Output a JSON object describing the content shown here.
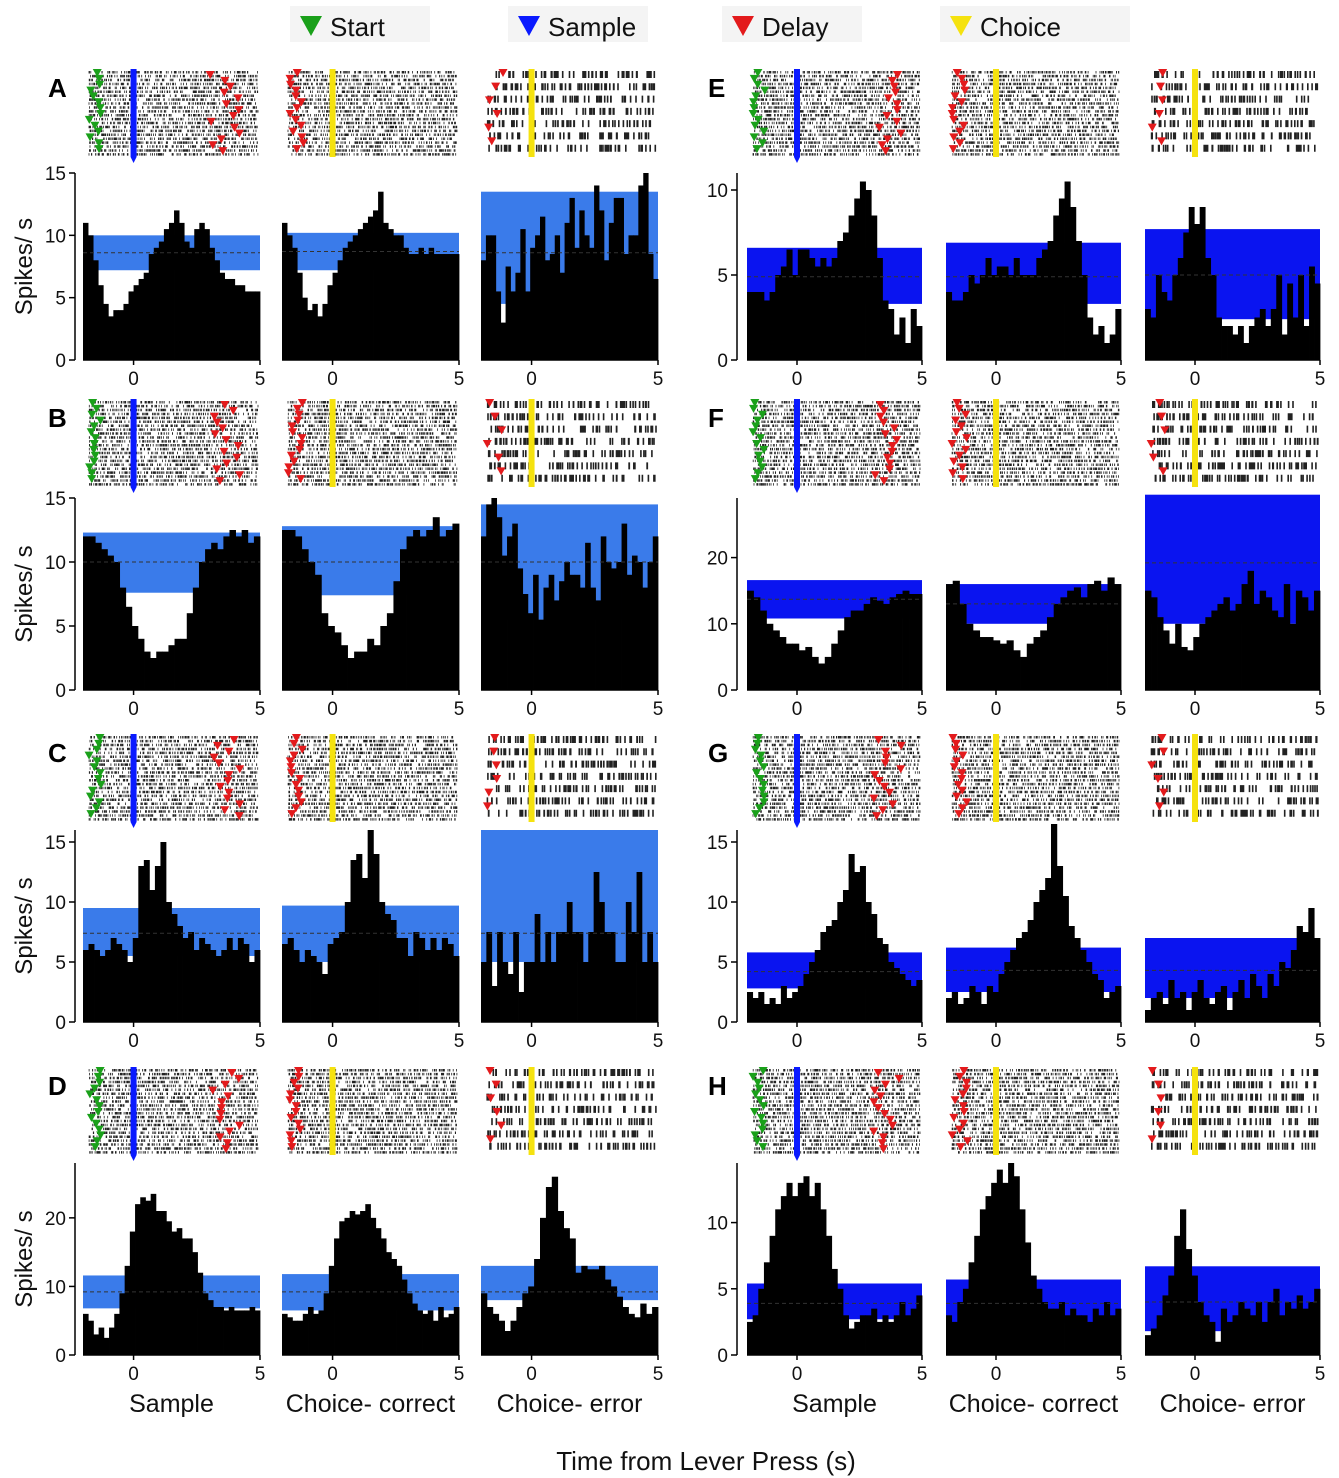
{
  "legend": {
    "items": [
      {
        "label": "Start",
        "color": "#1aa01a"
      },
      {
        "label": "Sample",
        "color": "#0a1aff"
      },
      {
        "label": "Delay",
        "color": "#e31a1c"
      },
      {
        "label": "Choice",
        "color": "#f5e20f"
      }
    ]
  },
  "y_label": "Spikes/ s",
  "x_title": "Time from Lever Press (s)",
  "x_range": [
    -2,
    5
  ],
  "x_tick_labels": [
    "0",
    "5"
  ],
  "column_labels": [
    "Sample",
    "Choice- correct",
    "Choice- error"
  ],
  "colors": {
    "band_left": "#3a7bea",
    "band_right": "#0a14f0",
    "bars": "#000000",
    "start": "#1aa01a",
    "sample": "#0a1aff",
    "delay": "#e31a1c",
    "choice": "#f5e20f"
  },
  "chart_data": [
    {
      "panel": "A",
      "type": "bar",
      "ylim": [
        0,
        15
      ],
      "yticks": [
        0,
        5,
        10,
        15
      ],
      "y_tick_labels": [
        "0",
        "5",
        "10",
        "15"
      ],
      "band_color": "#3a7bea",
      "cols": [
        {
          "title": "Sample",
          "band": [
            7.2,
            10.0
          ],
          "mean": 8.6,
          "values": [
            11,
            10,
            8,
            6,
            4.5,
            3.5,
            4,
            4,
            4.5,
            5.5,
            6,
            6.5,
            7,
            8.5,
            9,
            9.5,
            10.5,
            11,
            12,
            11,
            9.5,
            9,
            10.5,
            11,
            10.5,
            9,
            8,
            7,
            6.5,
            6.5,
            6,
            6,
            5.5,
            5.5,
            5.5
          ]
        },
        {
          "title": "Choice- correct",
          "band": [
            7.2,
            10.2
          ],
          "mean": 8.7,
          "values": [
            11,
            10,
            9,
            7,
            5,
            4,
            4.5,
            3.5,
            4.5,
            6,
            7,
            8,
            9,
            9.5,
            10,
            10.5,
            11,
            11.5,
            12,
            13.5,
            11,
            10.5,
            10,
            10,
            9,
            8.5,
            8.5,
            9,
            8.5,
            9,
            8.5,
            8.5,
            8.5,
            8.5,
            8.5
          ]
        },
        {
          "title": "Choice- error",
          "band": [
            4.5,
            13.5
          ],
          "mean": 8.6,
          "values": [
            8,
            10,
            10,
            5.5,
            3,
            7.5,
            5.5,
            7,
            10.5,
            5.5,
            9,
            10,
            11.5,
            8,
            8.5,
            10,
            7,
            11,
            13,
            9,
            12,
            10,
            9,
            14,
            12,
            8,
            11,
            13,
            13,
            8.5,
            10,
            10,
            14,
            15,
            8.5,
            6.5
          ]
        }
      ]
    },
    {
      "panel": "B",
      "type": "bar",
      "ylim": [
        0,
        15
      ],
      "yticks": [
        0,
        5,
        10,
        15
      ],
      "y_tick_labels": [
        "0",
        "5",
        "10",
        "15"
      ],
      "band_color": "#3a7bea",
      "cols": [
        {
          "title": "Sample",
          "band": [
            7.6,
            12.3
          ],
          "mean": 10.0,
          "values": [
            12,
            12,
            11.5,
            11,
            10.5,
            10,
            8,
            6.5,
            5,
            4,
            3,
            2.5,
            3,
            3,
            3.5,
            4,
            4,
            6,
            8,
            10,
            11,
            11.5,
            11,
            12,
            12.5,
            12,
            12.5,
            11.5,
            12
          ]
        },
        {
          "title": "Choice- correct",
          "band": [
            7.4,
            12.8
          ],
          "mean": 10.0,
          "values": [
            12.5,
            12.5,
            12,
            11,
            10,
            9,
            6,
            5,
            4.5,
            3.5,
            2.5,
            3,
            3,
            4,
            3.5,
            5,
            6,
            8.5,
            11,
            12,
            12.5,
            12,
            12.5,
            13.5,
            12,
            12.5,
            13
          ]
        },
        {
          "title": "Choice- error",
          "band": [
            5.5,
            14.5
          ],
          "mean": 10.0,
          "values": [
            12,
            14.5,
            15,
            13.5,
            10.5,
            12,
            13,
            9.5,
            7.5,
            6,
            9,
            5.5,
            8,
            9,
            7,
            8.5,
            10,
            9,
            9,
            8,
            11.5,
            8,
            7,
            12,
            10,
            9.5,
            10,
            13,
            9,
            10.5,
            10,
            8,
            10,
            12
          ]
        }
      ]
    },
    {
      "panel": "C",
      "type": "bar",
      "ylim": [
        0,
        16
      ],
      "yticks": [
        0,
        5,
        10,
        15
      ],
      "y_tick_labels": [
        "0",
        "5",
        "10",
        "15"
      ],
      "band_color": "#3a7bea",
      "cols": [
        {
          "title": "Sample",
          "band": [
            5.5,
            9.5
          ],
          "mean": 7.4,
          "values": [
            6,
            6.5,
            6,
            5.5,
            6,
            7,
            6.5,
            6,
            5,
            7,
            13,
            13.5,
            11,
            13,
            15,
            10,
            9,
            8,
            7,
            7.5,
            6,
            7,
            6.5,
            6,
            5.5,
            6,
            7,
            6,
            7,
            6.5,
            5,
            6
          ]
        },
        {
          "title": "Choice- correct",
          "band": [
            5,
            9.7
          ],
          "mean": 7.4,
          "values": [
            6.5,
            7,
            6,
            5,
            6,
            5.5,
            5,
            4,
            6.5,
            7,
            7.5,
            10,
            13.5,
            14,
            12,
            16,
            14,
            10,
            9,
            8.5,
            7,
            7,
            5.5,
            7.5,
            7,
            6,
            7,
            6,
            7,
            6.5,
            5.5
          ]
        },
        {
          "title": "Choice- error",
          "band": [
            5,
            16
          ],
          "mean": 7.4,
          "values": [
            5,
            7.5,
            3,
            7.5,
            5,
            4,
            7.5,
            2.5,
            5,
            5,
            9,
            5,
            7.5,
            5,
            7.5,
            7.5,
            10,
            7.5,
            7.5,
            5,
            7.5,
            12.5,
            10,
            7.5,
            7.5,
            5,
            5,
            10,
            7.5,
            12.5,
            5,
            7.5,
            5
          ]
        }
      ]
    },
    {
      "panel": "D",
      "type": "bar",
      "ylim": [
        0,
        28
      ],
      "yticks": [
        0,
        10,
        20
      ],
      "y_tick_labels": [
        "0",
        "10",
        "20"
      ],
      "band_color": "#3a7bea",
      "cols": [
        {
          "title": "Sample",
          "band": [
            6.8,
            11.6
          ],
          "mean": 9.2,
          "values": [
            6,
            5,
            3,
            4,
            2.5,
            4,
            6,
            9,
            13,
            18,
            22,
            23,
            22.5,
            23.5,
            21,
            21,
            19.5,
            18,
            18.5,
            17,
            17,
            15,
            12,
            9,
            8,
            7,
            7,
            6.5,
            7,
            6.5,
            6.5,
            6.5,
            7,
            6.5
          ]
        },
        {
          "title": "Choice- correct",
          "band": [
            6.5,
            11.8
          ],
          "mean": 9.2,
          "values": [
            6,
            5.5,
            5,
            5,
            6,
            7,
            6,
            6.5,
            9,
            13,
            17,
            19.5,
            20,
            21,
            20.5,
            21,
            22,
            20,
            18.5,
            17,
            15,
            14,
            13,
            11,
            9,
            7.5,
            6.5,
            6,
            6.5,
            5,
            7,
            5.5,
            6,
            7
          ]
        },
        {
          "title": "Choice- error",
          "band": [
            8,
            13
          ],
          "mean": 9.2,
          "values": [
            9,
            7,
            6,
            5,
            3.5,
            5,
            7,
            9,
            10,
            14,
            20,
            24.5,
            26,
            21,
            18.5,
            17,
            12,
            13,
            12.5,
            12.5,
            13,
            11,
            10,
            8.5,
            7,
            6,
            5.5,
            7.5,
            6,
            7
          ]
        }
      ]
    },
    {
      "panel": "E",
      "type": "bar",
      "ylim": [
        0,
        11
      ],
      "yticks": [
        0,
        5,
        10
      ],
      "y_tick_labels": [
        "0",
        "5",
        "10"
      ],
      "band_color": "#0a14f0",
      "cols": [
        {
          "title": "Sample",
          "band": [
            3.3,
            6.6
          ],
          "mean": 4.9,
          "values": [
            4,
            4,
            4,
            3.5,
            4,
            5,
            5.5,
            6.5,
            5,
            6.5,
            6.5,
            6,
            5.5,
            6,
            5.5,
            6,
            7,
            7.5,
            8.5,
            9.5,
            10.5,
            10,
            8.5,
            6,
            3.5,
            3,
            1.5,
            2.5,
            1,
            3,
            2
          ]
        },
        {
          "title": "Choice- correct",
          "band": [
            3.3,
            6.9
          ],
          "mean": 4.9,
          "values": [
            4,
            3.5,
            3.5,
            4,
            5,
            4.5,
            5,
            6,
            5,
            5.5,
            5.5,
            5,
            6,
            5,
            5,
            5,
            6,
            6.5,
            7,
            8.5,
            9.5,
            10.5,
            9,
            7,
            5,
            2.5,
            1.5,
            2,
            1,
            1.5,
            3
          ]
        },
        {
          "title": "Choice- error",
          "band": [
            2.4,
            7.7
          ],
          "mean": 5.0,
          "values": [
            3,
            2.5,
            5,
            4,
            3.5,
            5,
            6,
            7.5,
            9,
            8,
            9,
            6,
            5,
            2.5,
            2,
            2,
            1.5,
            2,
            1,
            2,
            2.5,
            3,
            2,
            3,
            5,
            1.5,
            4.5,
            2.5,
            5,
            2,
            5.5,
            4.5
          ]
        }
      ]
    },
    {
      "panel": "F",
      "type": "bar",
      "ylim": [
        0,
        29
      ],
      "yticks": [
        0,
        10,
        20
      ],
      "y_tick_labels": [
        "0",
        "10",
        "20"
      ],
      "band_color": "#0a14f0",
      "cols": [
        {
          "title": "Sample",
          "band": [
            10.8,
            16.6
          ],
          "mean": 13.7,
          "values": [
            15,
            14,
            12,
            10,
            9,
            8,
            7,
            7,
            6,
            6.5,
            5,
            4,
            5,
            7,
            9,
            11,
            12,
            12,
            13,
            14,
            13.5,
            13,
            14,
            14.5,
            15,
            14.5,
            14.5
          ]
        },
        {
          "title": "Choice- correct",
          "band": [
            10,
            16
          ],
          "mean": 13.0,
          "values": [
            16,
            16.5,
            13,
            10,
            9,
            8,
            8,
            7.5,
            7,
            7.5,
            6,
            5,
            7,
            8,
            9,
            11,
            13,
            14,
            15,
            15.5,
            14,
            16,
            16.5,
            15,
            17,
            16
          ]
        },
        {
          "title": "Choice- error",
          "band": [
            10,
            29.5
          ],
          "mean": 19.2,
          "values": [
            15,
            14,
            11,
            9,
            7,
            10,
            6.5,
            6,
            8,
            10,
            11,
            12,
            13,
            14,
            12,
            13,
            16,
            18,
            13,
            15,
            14,
            12,
            11,
            16,
            10,
            15,
            14,
            12,
            15
          ]
        }
      ]
    },
    {
      "panel": "G",
      "type": "bar",
      "ylim": [
        0,
        16
      ],
      "yticks": [
        0,
        5,
        10,
        15
      ],
      "y_tick_labels": [
        "0",
        "5",
        "10",
        "15"
      ],
      "band_color": "#0a14f0",
      "cols": [
        {
          "title": "Sample",
          "band": [
            2.8,
            5.8
          ],
          "mean": 4.2,
          "values": [
            2.5,
            2,
            2.5,
            1.5,
            2,
            1.5,
            3,
            2,
            2.5,
            3,
            4,
            5,
            6,
            7.5,
            8,
            8.5,
            10,
            11,
            14,
            12.5,
            13,
            10,
            9,
            7,
            6.5,
            5,
            4.5,
            4,
            3.5,
            3,
            3.5
          ]
        },
        {
          "title": "Choice- correct",
          "band": [
            2.5,
            6.2
          ],
          "mean": 4.3,
          "values": [
            2,
            2.5,
            1.5,
            2,
            3,
            2.5,
            1.5,
            3,
            2.5,
            4,
            5,
            6,
            7,
            7.5,
            8.5,
            10,
            11,
            12,
            16.5,
            13,
            10.5,
            8,
            7,
            6,
            5,
            4,
            3.5,
            2,
            2.5,
            3
          ]
        },
        {
          "title": "Choice- error",
          "band": [
            2,
            7
          ],
          "mean": 4.3,
          "values": [
            1,
            2,
            2.5,
            1.5,
            3.5,
            2,
            2.5,
            1,
            2.5,
            3.5,
            2,
            1.5,
            2.5,
            3,
            1,
            2.5,
            3.5,
            2,
            4,
            3,
            2,
            4,
            3,
            5,
            4.5,
            6,
            8,
            7.5,
            9.5,
            7
          ]
        }
      ]
    },
    {
      "panel": "H",
      "type": "bar",
      "ylim": [
        0,
        14.5
      ],
      "yticks": [
        0,
        5,
        10
      ],
      "y_tick_labels": [
        "0",
        "5",
        "10"
      ],
      "band_color": "#0a14f0",
      "cols": [
        {
          "title": "Sample",
          "band": [
            2.7,
            5.4
          ],
          "mean": 3.9,
          "values": [
            2.5,
            3,
            5,
            7,
            9,
            11,
            12,
            13,
            12,
            13,
            13.5,
            12,
            13,
            11,
            9,
            6.5,
            5,
            3,
            2,
            2.5,
            3,
            3,
            3.5,
            2.5,
            3,
            2.5,
            3,
            4,
            3,
            3.5,
            4.5
          ]
        },
        {
          "title": "Choice- correct",
          "band": [
            2.4,
            5.7
          ],
          "mean": 3.9,
          "values": [
            3,
            2.5,
            4,
            5,
            7,
            9,
            11,
            12,
            13,
            14,
            13,
            14.5,
            13.5,
            11,
            8.5,
            6,
            5,
            4,
            3.5,
            3.5,
            4,
            3,
            3.5,
            3,
            3,
            2.5,
            3.5,
            3,
            4,
            3,
            3.5
          ]
        },
        {
          "title": "Choice- error",
          "band": [
            1.8,
            6.7
          ],
          "mean": 4.0,
          "values": [
            1.5,
            2,
            3,
            4.5,
            6,
            9,
            11,
            8,
            6,
            4,
            3,
            2.5,
            1,
            3.5,
            2.5,
            3,
            4,
            3.5,
            3,
            4,
            2.5,
            4,
            5,
            3,
            4,
            3.5,
            4.5,
            3.5,
            4,
            5
          ]
        }
      ]
    }
  ]
}
